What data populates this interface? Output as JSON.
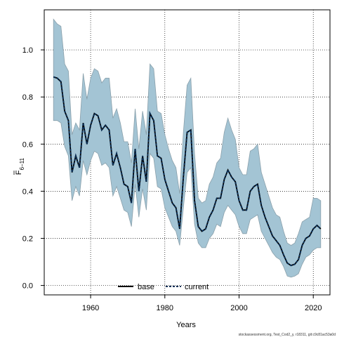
{
  "chart_data": {
    "type": "line",
    "xlabel": "Years",
    "ylabel_main": "F",
    "ylabel_sub": "6−11",
    "xlim": [
      1947.5,
      2024.5
    ],
    "ylim": [
      -0.04,
      1.17
    ],
    "xticks": [
      1960,
      1980,
      2000,
      2020
    ],
    "yticks": [
      0.0,
      0.2,
      0.4,
      0.6,
      0.8,
      1.0
    ],
    "xtick_labels": [
      "1960",
      "1980",
      "2000",
      "2020"
    ],
    "ytick_labels": [
      "0.0",
      "0.2",
      "0.4",
      "0.6",
      "0.8",
      "1.0"
    ],
    "grid": true,
    "legend_placement": "bottom-center",
    "colors": {
      "band_fill": "#a3c4d4",
      "band_stroke": "#8aa0ab",
      "base_line": "#000000",
      "current_line": "#0a2e55",
      "grid": "#000000"
    },
    "x": [
      1950,
      1951,
      1952,
      1953,
      1954,
      1955,
      1956,
      1957,
      1958,
      1959,
      1960,
      1961,
      1962,
      1963,
      1964,
      1965,
      1966,
      1967,
      1968,
      1969,
      1970,
      1971,
      1972,
      1973,
      1974,
      1975,
      1976,
      1977,
      1978,
      1979,
      1980,
      1981,
      1982,
      1983,
      1984,
      1985,
      1986,
      1987,
      1988,
      1989,
      1990,
      1991,
      1992,
      1993,
      1994,
      1995,
      1996,
      1997,
      1998,
      1999,
      2000,
      2001,
      2002,
      2003,
      2004,
      2005,
      2006,
      2007,
      2008,
      2009,
      2010,
      2011,
      2012,
      2013,
      2014,
      2015,
      2016,
      2017,
      2018,
      2019,
      2020,
      2021,
      2022
    ],
    "series": [
      {
        "name": "base",
        "values": [
          0.885,
          0.88,
          0.865,
          0.74,
          0.7,
          0.48,
          0.55,
          0.5,
          0.69,
          0.6,
          0.68,
          0.73,
          0.72,
          0.66,
          0.68,
          0.66,
          0.51,
          0.56,
          0.5,
          0.43,
          0.42,
          0.35,
          0.58,
          0.4,
          0.55,
          0.44,
          0.73,
          0.7,
          0.55,
          0.54,
          0.45,
          0.4,
          0.35,
          0.33,
          0.24,
          0.46,
          0.65,
          0.66,
          0.36,
          0.25,
          0.23,
          0.24,
          0.29,
          0.32,
          0.37,
          0.37,
          0.45,
          0.49,
          0.46,
          0.44,
          0.36,
          0.32,
          0.32,
          0.4,
          0.42,
          0.43,
          0.34,
          0.29,
          0.25,
          0.21,
          0.19,
          0.17,
          0.13,
          0.095,
          0.085,
          0.09,
          0.11,
          0.17,
          0.2,
          0.21,
          0.24,
          0.255,
          0.24
        ]
      },
      {
        "name": "current",
        "values": [
          0.885,
          0.88,
          0.865,
          0.74,
          0.7,
          0.48,
          0.55,
          0.5,
          0.69,
          0.6,
          0.68,
          0.73,
          0.72,
          0.66,
          0.68,
          0.66,
          0.51,
          0.56,
          0.5,
          0.43,
          0.42,
          0.35,
          0.58,
          0.4,
          0.55,
          0.44,
          0.73,
          0.7,
          0.55,
          0.54,
          0.45,
          0.4,
          0.35,
          0.33,
          0.24,
          0.46,
          0.65,
          0.66,
          0.36,
          0.25,
          0.23,
          0.24,
          0.29,
          0.32,
          0.37,
          0.37,
          0.45,
          0.49,
          0.46,
          0.44,
          0.36,
          0.32,
          0.32,
          0.4,
          0.42,
          0.43,
          0.34,
          0.29,
          0.25,
          0.21,
          0.19,
          0.17,
          0.13,
          0.095,
          0.085,
          0.09,
          0.11,
          0.17,
          0.2,
          0.21,
          0.24,
          0.255,
          0.24
        ]
      }
    ],
    "band_upper": [
      1.13,
      1.11,
      1.1,
      0.94,
      0.91,
      0.64,
      0.69,
      0.66,
      0.9,
      0.79,
      0.88,
      0.92,
      0.91,
      0.86,
      0.88,
      0.88,
      0.71,
      0.75,
      0.69,
      0.61,
      0.61,
      0.52,
      0.75,
      0.58,
      0.74,
      0.64,
      0.94,
      0.92,
      0.74,
      0.73,
      0.64,
      0.58,
      0.53,
      0.5,
      0.39,
      0.65,
      0.85,
      0.88,
      0.56,
      0.37,
      0.35,
      0.36,
      0.43,
      0.46,
      0.52,
      0.54,
      0.65,
      0.71,
      0.66,
      0.62,
      0.5,
      0.47,
      0.47,
      0.57,
      0.58,
      0.6,
      0.48,
      0.43,
      0.38,
      0.33,
      0.3,
      0.29,
      0.23,
      0.18,
      0.17,
      0.18,
      0.22,
      0.27,
      0.28,
      0.29,
      0.37,
      0.37,
      0.36
    ],
    "band_lower": [
      0.7,
      0.7,
      0.69,
      0.59,
      0.55,
      0.36,
      0.42,
      0.38,
      0.53,
      0.47,
      0.53,
      0.57,
      0.56,
      0.51,
      0.52,
      0.5,
      0.38,
      0.42,
      0.37,
      0.32,
      0.31,
      0.25,
      0.43,
      0.29,
      0.41,
      0.32,
      0.56,
      0.54,
      0.42,
      0.41,
      0.33,
      0.29,
      0.25,
      0.23,
      0.17,
      0.33,
      0.48,
      0.5,
      0.26,
      0.18,
      0.16,
      0.16,
      0.2,
      0.22,
      0.26,
      0.25,
      0.31,
      0.34,
      0.32,
      0.3,
      0.25,
      0.22,
      0.22,
      0.28,
      0.29,
      0.3,
      0.23,
      0.2,
      0.17,
      0.14,
      0.12,
      0.11,
      0.08,
      0.04,
      0.035,
      0.04,
      0.05,
      0.09,
      0.12,
      0.13,
      0.15,
      0.16,
      0.16
    ]
  },
  "legend": {
    "base_label": "base",
    "current_label": "current"
  },
  "footer": "stockassessment.org, Test_Cod2_y, r18311, git:c9c81ac53a0d"
}
